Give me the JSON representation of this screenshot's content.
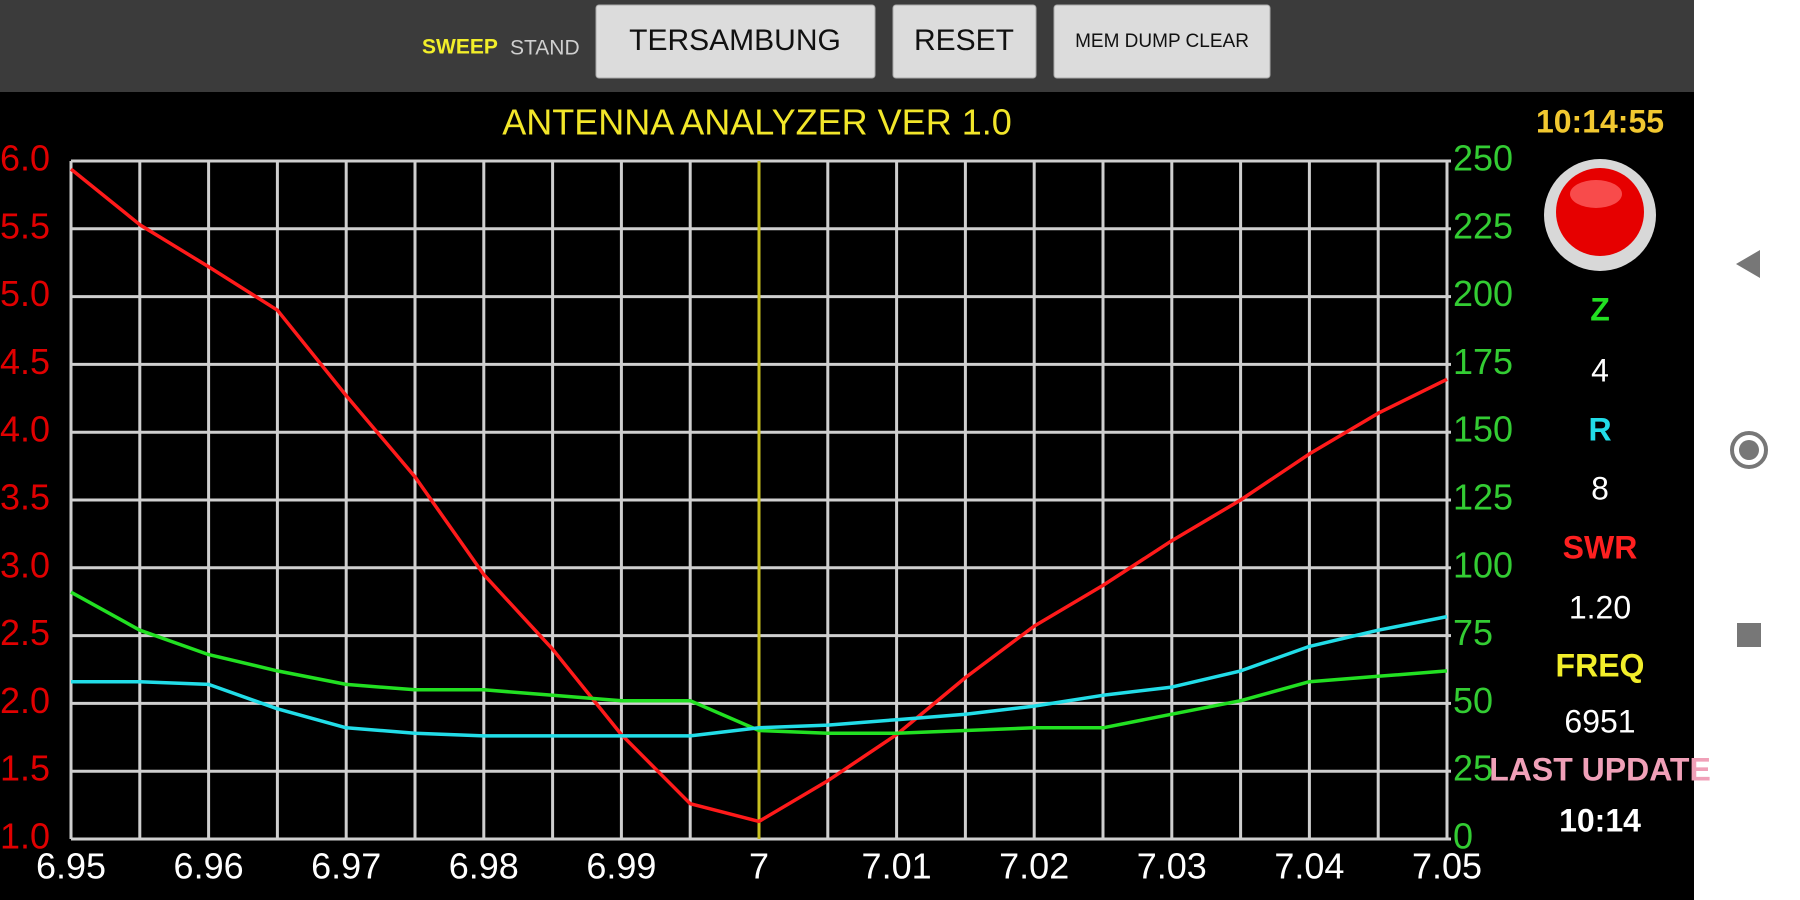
{
  "toolbar": {
    "sweep": "SWEEP",
    "stand": "STAND",
    "buttons": [
      "TERSAMBUNG",
      "RESET",
      "MEM DUMP CLEAR"
    ]
  },
  "chart_data": {
    "type": "line",
    "title": "ANTENNA ANALYZER VER 1.0",
    "x": [
      6.95,
      6.955,
      6.96,
      6.965,
      6.97,
      6.975,
      6.98,
      6.985,
      6.99,
      6.995,
      7.0,
      7.005,
      7.01,
      7.015,
      7.02,
      7.025,
      7.03,
      7.035,
      7.04,
      7.045,
      7.05
    ],
    "series": [
      {
        "color": "#ff1a1a",
        "axis": "y",
        "values": [
          5.94,
          5.53,
          5.22,
          4.9,
          4.27,
          3.67,
          2.95,
          2.4,
          1.77,
          1.26,
          1.13,
          1.43,
          1.77,
          2.19,
          2.57,
          2.87,
          3.2,
          3.5,
          3.84,
          4.14,
          4.39
        ]
      },
      {
        "color": "#22e022",
        "axis": "y2",
        "values": [
          91,
          77,
          68,
          62,
          57,
          55,
          55,
          53,
          51,
          51,
          40,
          39,
          39,
          40,
          41,
          41,
          46,
          51,
          58,
          60,
          62
        ]
      },
      {
        "color": "#22dde8",
        "axis": "y2",
        "values": [
          58,
          58,
          57,
          48,
          41,
          39,
          38,
          38,
          38,
          38,
          41,
          42,
          44,
          46,
          49,
          53,
          56,
          62,
          71,
          77,
          82
        ]
      }
    ],
    "xlim": [
      6.95,
      7.05
    ],
    "xticks": [
      6.95,
      6.96,
      6.97,
      6.98,
      6.99,
      7,
      7.01,
      7.02,
      7.03,
      7.04,
      7.05
    ],
    "x_minor_ticks": [
      6.955,
      6.965,
      6.975,
      6.985,
      6.995,
      7.005,
      7.015,
      7.025,
      7.035,
      7.045
    ],
    "ylim": [
      1.0,
      6.0
    ],
    "yticks": [
      {
        "value": 1,
        "label": "1.0"
      },
      1.5,
      {
        "value": 2,
        "label": "2.0"
      },
      2.5,
      {
        "value": 3,
        "label": "3.0"
      },
      3.5,
      {
        "value": 4,
        "label": "4.0"
      },
      4.5,
      {
        "value": 5,
        "label": "5.0"
      },
      5.5,
      {
        "value": 6,
        "label": "6.0"
      }
    ],
    "y2lim": [
      0,
      250
    ],
    "y2ticks": [
      0,
      25,
      50,
      75,
      100,
      125,
      150,
      175,
      200,
      225,
      250
    ],
    "marker_x": 7,
    "marker_color": "#c8c020",
    "grid": true
  },
  "panel": {
    "clock": "10:14:55",
    "z_label": "Z",
    "z_value": "4",
    "r_label": "R",
    "r_value": "8",
    "swr_label": "SWR",
    "swr_value": "1.20",
    "freq_label": "FREQ",
    "freq_value": "6951",
    "last_update_label": "LAST UPDATE",
    "last_update_value": "10:14"
  }
}
